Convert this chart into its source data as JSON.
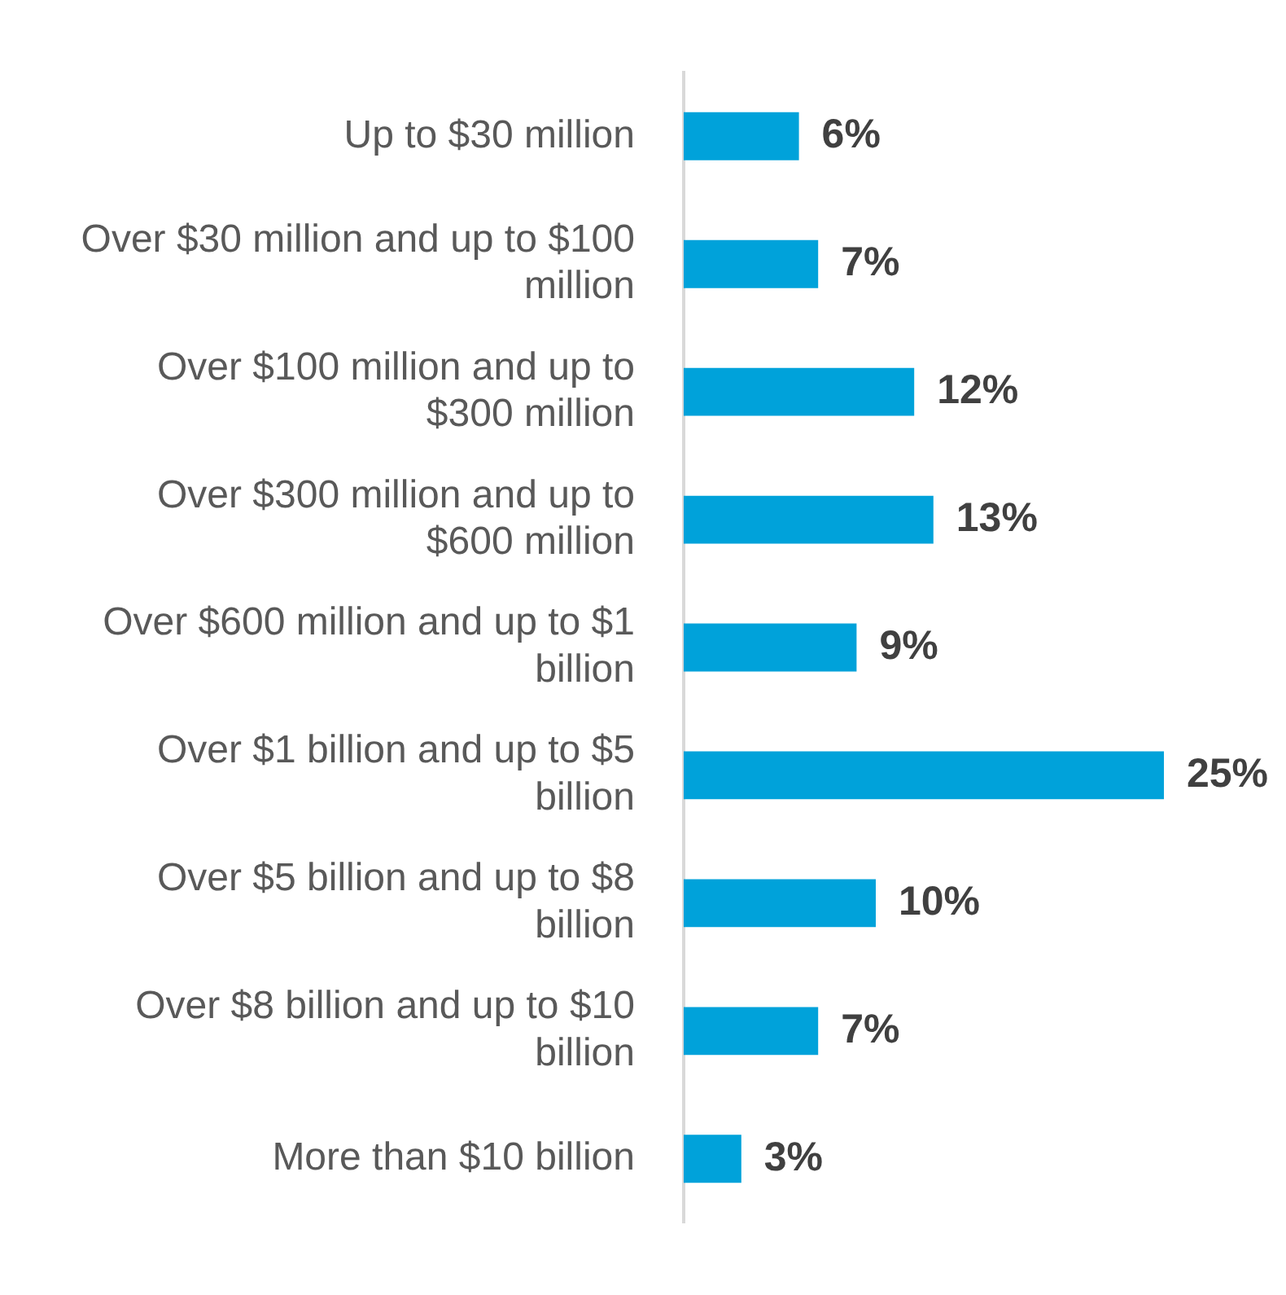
{
  "chart_data": {
    "type": "bar",
    "orientation": "horizontal",
    "categories": [
      "Up to $30 million",
      "Over $30 million and up to $100 million",
      "Over $100 million and up to $300 million",
      "Over $300 million and up to $600 million",
      "Over $600 million and up to $1 billion",
      "Over $1 billion and up to $5 billion",
      "Over $5 billion and up to $8 billion",
      "Over $8 billion and up to $10 billion",
      "More than $10 billion"
    ],
    "values": [
      6,
      7,
      12,
      13,
      9,
      25,
      10,
      7,
      3
    ],
    "value_labels": [
      "6%",
      "7%",
      "12%",
      "13%",
      "9%",
      "25%",
      "10%",
      "7%",
      "3%"
    ],
    "color": "#00a2da",
    "tick_labels": "y",
    "grid": false,
    "legend": false
  }
}
